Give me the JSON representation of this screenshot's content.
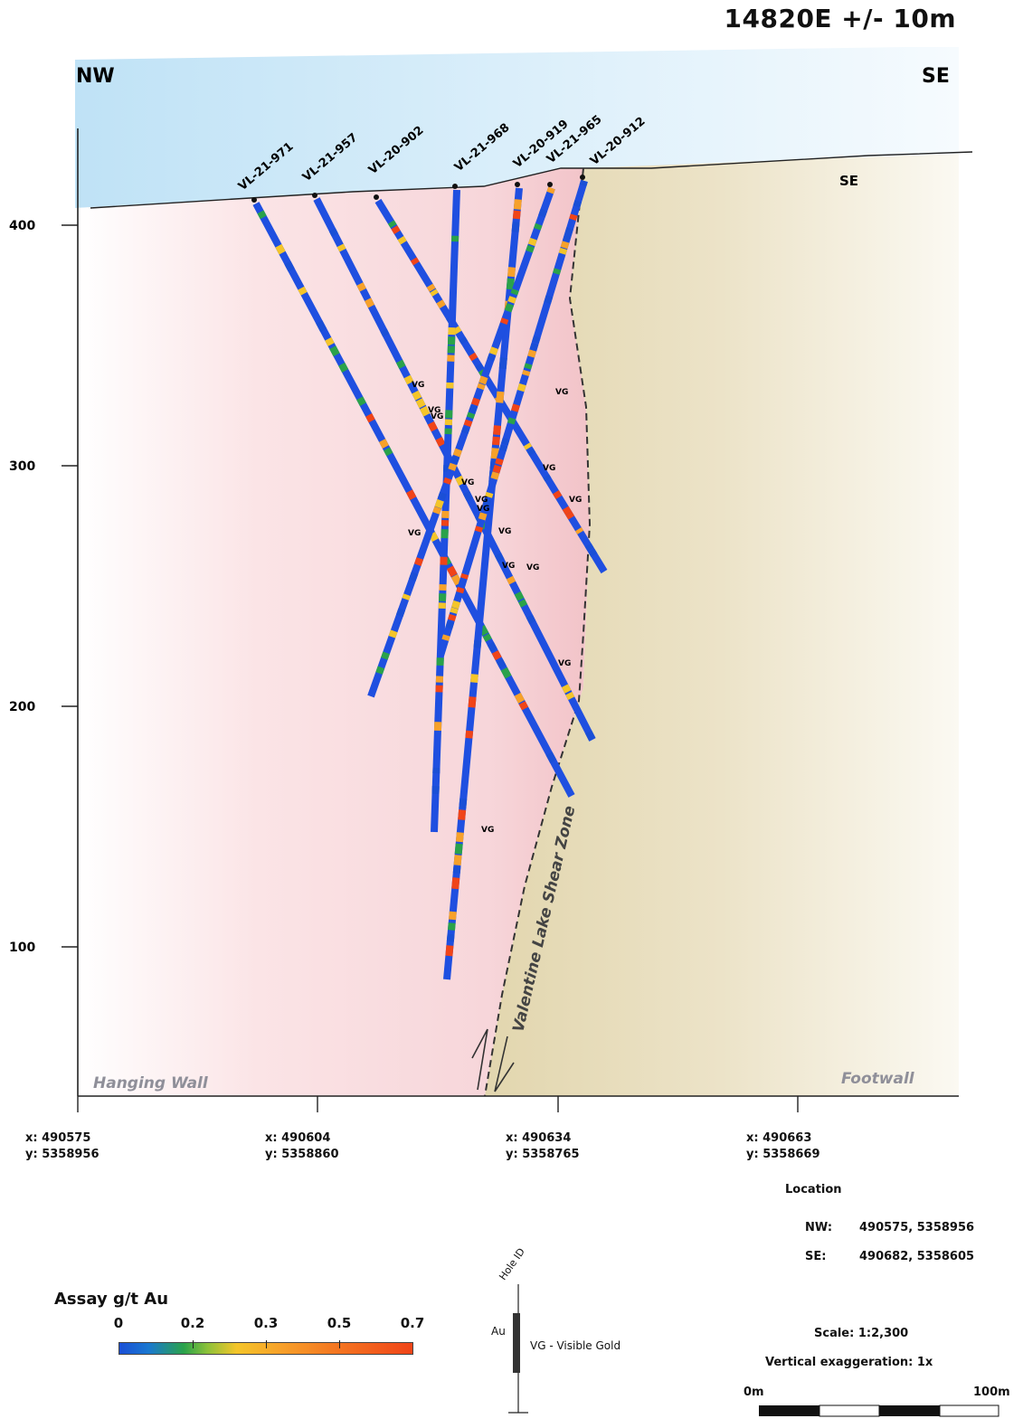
{
  "title": "14820E +/- 10m",
  "direction_left": "NW",
  "direction_right": "SE",
  "right_label_se": "SE",
  "zones": {
    "hanging_wall": "Hanging Wall",
    "footwall": "Footwall",
    "shear_zone": "Valentine Lake Shear Zone"
  },
  "elevation_ticks": [
    "400",
    "300",
    "200",
    "100"
  ],
  "drill_holes": [
    "VL-21-971",
    "VL-21-957",
    "VL-20-902",
    "VL-21-968",
    "VL-20-919",
    "VL-21-965",
    "VL-20-912"
  ],
  "vg_label": "VG",
  "x_coordinates": [
    {
      "x": "x: 490575",
      "y": "y: 5358956"
    },
    {
      "x": "x: 490604",
      "y": "y: 5358860"
    },
    {
      "x": "x: 490634",
      "y": "y: 5358765"
    },
    {
      "x": "x: 490663",
      "y": "y: 5358669"
    }
  ],
  "location": {
    "title": "Location",
    "nw_label": "NW:",
    "nw_value": "490575, 5358956",
    "se_label": "SE:",
    "se_value": "490682, 5358605"
  },
  "legend": {
    "title": "Assay g/t Au",
    "ticks": [
      "0",
      "0.2",
      "0.3",
      "0.5",
      "0.7"
    ],
    "colors": [
      "#1a4fd6",
      "#2aa24a",
      "#f4c52a",
      "#f7a12a",
      "#f04418"
    ]
  },
  "key": {
    "hole_id": "Hole ID",
    "au": "Au",
    "vg": "VG - Visible Gold"
  },
  "scale": {
    "scale_text": "Scale: 1:2,300",
    "vertical_exaggeration": "Vertical exaggeration: 1x",
    "bar_start": "0m",
    "bar_end": "100m"
  },
  "colors": {
    "sky": "#d6eef9",
    "hanging_wall": "#f8dcdf",
    "footwall": "#e4d8b2",
    "hole_base": "#1f4fe0"
  }
}
